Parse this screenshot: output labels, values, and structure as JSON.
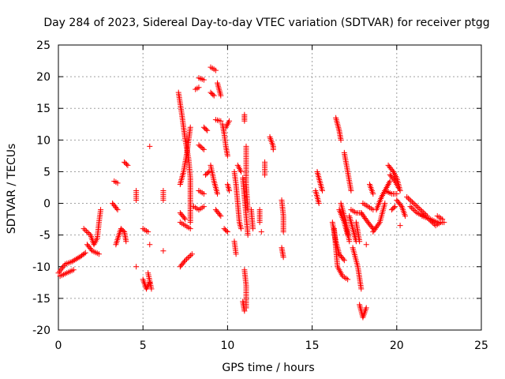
{
  "chart_data": {
    "type": "scatter",
    "title": "Day 284 of 2023, Sidereal Day-to-day VTEC variation (SDTVAR) for receiver ptgg",
    "xlabel": "GPS time / hours",
    "ylabel": "SDTVAR / TECUs",
    "xlim": [
      0,
      25
    ],
    "ylim": [
      -20,
      25
    ],
    "xticks": [
      0,
      5,
      10,
      15,
      20,
      25
    ],
    "yticks": [
      -20,
      -15,
      -10,
      -5,
      0,
      5,
      10,
      15,
      20,
      25
    ],
    "grid": true,
    "marker": "+",
    "color": "#ff0000",
    "tracks": [
      {
        "points": [
          [
            0,
            -11
          ],
          [
            0.4,
            -9.6
          ],
          [
            0.8,
            -9.2
          ],
          [
            1.3,
            -8.4
          ],
          [
            1.6,
            -7.8
          ]
        ]
      },
      {
        "points": [
          [
            0.1,
            -11.5
          ],
          [
            0.5,
            -11
          ],
          [
            0.9,
            -10.5
          ]
        ]
      },
      {
        "points": [
          [
            1.5,
            -4
          ],
          [
            1.9,
            -5
          ],
          [
            2.1,
            -6.5
          ],
          [
            2.3,
            -5.5
          ],
          [
            2.4,
            -3
          ],
          [
            2.5,
            -1
          ]
        ]
      },
      {
        "points": [
          [
            1.7,
            -6.5
          ],
          [
            2.0,
            -7.5
          ],
          [
            2.4,
            -8
          ]
        ]
      },
      {
        "points": [
          [
            3.3,
            3.5
          ],
          [
            3.5,
            3.2
          ]
        ]
      },
      {
        "points": [
          [
            3.2,
            0
          ],
          [
            3.5,
            -1
          ]
        ]
      },
      {
        "points": [
          [
            3.4,
            -6.5
          ],
          [
            3.7,
            -4
          ],
          [
            3.9,
            -4.5
          ],
          [
            4.0,
            -6
          ]
        ]
      },
      {
        "points": [
          [
            3.9,
            6.5
          ],
          [
            4.1,
            6
          ]
        ]
      },
      {
        "points": [
          [
            4.6,
            2
          ],
          [
            4.6,
            0.5
          ]
        ]
      },
      {
        "points": [
          [
            4.6,
            -10
          ]
        ]
      },
      {
        "points": [
          [
            5.0,
            -4
          ],
          [
            5.3,
            -4.5
          ]
        ]
      },
      {
        "points": [
          [
            5.0,
            -12
          ],
          [
            5.2,
            -13.5
          ],
          [
            5.4,
            -12.5
          ]
        ]
      },
      {
        "points": [
          [
            5.3,
            -11
          ],
          [
            5.5,
            -13.5
          ]
        ]
      },
      {
        "points": [
          [
            5.4,
            -6.5
          ]
        ]
      },
      {
        "points": [
          [
            5.4,
            9
          ]
        ]
      },
      {
        "points": [
          [
            6.2,
            2
          ],
          [
            6.2,
            0.5
          ]
        ]
      },
      {
        "points": [
          [
            6.2,
            -7.5
          ]
        ]
      },
      {
        "points": [
          [
            7.2,
            -10
          ],
          [
            7.5,
            -9
          ],
          [
            7.9,
            -8
          ]
        ]
      },
      {
        "points": [
          [
            7.1,
            17.5
          ],
          [
            7.3,
            14
          ],
          [
            7.5,
            10
          ],
          [
            7.7,
            7
          ],
          [
            7.8,
            4
          ],
          [
            7.8,
            -3
          ]
        ]
      },
      {
        "points": [
          [
            7.2,
            -3
          ],
          [
            7.5,
            -3.5
          ],
          [
            7.8,
            -4
          ]
        ]
      },
      {
        "points": [
          [
            7.2,
            -1.5
          ],
          [
            7.5,
            -2.5
          ]
        ]
      },
      {
        "points": [
          [
            7.2,
            3
          ],
          [
            7.4,
            5
          ],
          [
            7.6,
            8
          ],
          [
            7.8,
            12
          ]
        ]
      },
      {
        "points": [
          [
            8.1,
            18
          ],
          [
            8.3,
            18.3
          ]
        ]
      },
      {
        "points": [
          [
            8.3,
            19.8
          ],
          [
            8.6,
            19.5
          ]
        ]
      },
      {
        "points": [
          [
            8.6,
            12
          ],
          [
            8.8,
            11.5
          ]
        ]
      },
      {
        "points": [
          [
            8.3,
            9.2
          ],
          [
            8.6,
            8.5
          ]
        ]
      },
      {
        "points": [
          [
            8.3,
            2
          ],
          [
            8.6,
            1.5
          ]
        ]
      },
      {
        "points": [
          [
            8.3,
            -1
          ],
          [
            8.6,
            -0.5
          ]
        ]
      },
      {
        "points": [
          [
            8.7,
            4.5
          ],
          [
            8.9,
            5
          ]
        ]
      },
      {
        "points": [
          [
            8.0,
            -0.5
          ],
          [
            8.3,
            -1
          ]
        ]
      },
      {
        "points": [
          [
            9.0,
            21.5
          ],
          [
            9.3,
            21
          ]
        ]
      },
      {
        "points": [
          [
            9.0,
            17.5
          ],
          [
            9.2,
            17
          ]
        ]
      },
      {
        "points": [
          [
            9.0,
            6
          ],
          [
            9.2,
            3.5
          ],
          [
            9.4,
            1.5
          ]
        ]
      },
      {
        "points": [
          [
            9.4,
            19
          ],
          [
            9.6,
            17
          ]
        ]
      },
      {
        "points": [
          [
            9.3,
            13.2
          ],
          [
            9.6,
            13
          ]
        ]
      },
      {
        "points": [
          [
            9.7,
            12.5
          ],
          [
            9.8,
            11
          ],
          [
            9.9,
            9
          ],
          [
            10.0,
            7.5
          ]
        ]
      },
      {
        "points": [
          [
            9.9,
            12
          ],
          [
            10.1,
            13
          ]
        ]
      },
      {
        "points": [
          [
            9.3,
            -1
          ],
          [
            9.6,
            -2
          ]
        ]
      },
      {
        "points": [
          [
            9.8,
            -4
          ],
          [
            10.0,
            -4.5
          ]
        ]
      },
      {
        "points": [
          [
            10.0,
            3
          ],
          [
            10.1,
            2
          ]
        ]
      },
      {
        "points": [
          [
            10.4,
            5
          ],
          [
            10.5,
            3
          ],
          [
            10.6,
            0
          ],
          [
            10.7,
            -3
          ],
          [
            10.8,
            -4
          ]
        ]
      },
      {
        "points": [
          [
            10.4,
            -6
          ],
          [
            10.5,
            -8
          ]
        ]
      },
      {
        "points": [
          [
            10.6,
            6
          ],
          [
            10.8,
            5
          ]
        ]
      },
      {
        "points": [
          [
            10.9,
            4
          ],
          [
            11.0,
            1
          ],
          [
            11.1,
            -2
          ],
          [
            11.2,
            -5
          ]
        ]
      },
      {
        "points": [
          [
            11.1,
            9
          ],
          [
            11.1,
            3
          ],
          [
            11.2,
            -1
          ]
        ]
      },
      {
        "points": [
          [
            11.0,
            -10.5
          ],
          [
            11.1,
            -13
          ],
          [
            11.1,
            -16.5
          ]
        ]
      },
      {
        "points": [
          [
            10.9,
            -15.5
          ],
          [
            11.0,
            -17
          ]
        ]
      },
      {
        "points": [
          [
            11.0,
            14
          ],
          [
            11.0,
            13
          ]
        ]
      },
      {
        "points": [
          [
            11.4,
            -1
          ],
          [
            11.5,
            -4
          ]
        ]
      },
      {
        "points": [
          [
            11.9,
            -1
          ],
          [
            11.9,
            -3
          ]
        ]
      },
      {
        "points": [
          [
            12.2,
            6.5
          ],
          [
            12.2,
            4.5
          ]
        ]
      },
      {
        "points": [
          [
            12.0,
            -4.5
          ]
        ]
      },
      {
        "points": [
          [
            12.5,
            10.5
          ],
          [
            12.7,
            9
          ],
          [
            12.7,
            8.5
          ]
        ]
      },
      {
        "points": [
          [
            13.2,
            0.5
          ],
          [
            13.3,
            -2
          ],
          [
            13.3,
            -4.5
          ]
        ]
      },
      {
        "points": [
          [
            13.2,
            -7
          ],
          [
            13.3,
            -8.5
          ]
        ]
      },
      {
        "points": [
          [
            15.3,
            5
          ],
          [
            15.5,
            3
          ],
          [
            15.6,
            2
          ]
        ]
      },
      {
        "points": [
          [
            15.2,
            2
          ],
          [
            15.4,
            0
          ]
        ]
      },
      {
        "points": [
          [
            16.4,
            13.5
          ],
          [
            16.6,
            11.5
          ],
          [
            16.7,
            10
          ]
        ]
      },
      {
        "points": [
          [
            16.2,
            -3
          ],
          [
            16.4,
            -6
          ],
          [
            16.6,
            -8
          ],
          [
            16.9,
            -9
          ]
        ]
      },
      {
        "points": [
          [
            16.3,
            -4
          ],
          [
            16.5,
            -10
          ],
          [
            16.8,
            -11.5
          ],
          [
            17.1,
            -12
          ]
        ]
      },
      {
        "points": [
          [
            16.6,
            -1
          ],
          [
            16.9,
            -3
          ],
          [
            17.1,
            -5
          ]
        ]
      },
      {
        "points": [
          [
            16.7,
            0
          ],
          [
            17.0,
            -3
          ],
          [
            17.2,
            -6
          ]
        ]
      },
      {
        "points": [
          [
            16.9,
            8
          ],
          [
            17.1,
            5
          ],
          [
            17.3,
            2
          ]
        ]
      },
      {
        "points": [
          [
            17.2,
            -2
          ],
          [
            17.4,
            -4
          ],
          [
            17.6,
            -6
          ]
        ]
      },
      {
        "points": [
          [
            17.4,
            -7
          ],
          [
            17.7,
            -10
          ],
          [
            17.9,
            -13.5
          ]
        ]
      },
      {
        "points": [
          [
            17.3,
            -1
          ],
          [
            17.6,
            -1.5
          ],
          [
            17.9,
            -1.5
          ]
        ]
      },
      {
        "points": [
          [
            17.6,
            -3
          ],
          [
            17.8,
            -6
          ]
        ]
      },
      {
        "points": [
          [
            17.8,
            -16
          ],
          [
            18.0,
            -18
          ],
          [
            18.2,
            -16.5
          ]
        ]
      },
      {
        "points": [
          [
            17.9,
            -1.5
          ],
          [
            18.3,
            -3
          ],
          [
            18.6,
            -4
          ]
        ]
      },
      {
        "points": [
          [
            18.0,
            0
          ],
          [
            18.3,
            -0.5
          ],
          [
            18.6,
            -1
          ]
        ]
      },
      {
        "points": [
          [
            18.2,
            -6.5
          ]
        ]
      },
      {
        "points": [
          [
            18.4,
            3
          ],
          [
            18.6,
            1.5
          ]
        ]
      },
      {
        "points": [
          [
            18.6,
            -4.5
          ],
          [
            19.0,
            -3
          ],
          [
            19.3,
            0
          ]
        ]
      },
      {
        "points": [
          [
            18.8,
            -1
          ],
          [
            19.1,
            1
          ],
          [
            19.4,
            2.5
          ],
          [
            19.6,
            3.5
          ]
        ]
      },
      {
        "points": [
          [
            19.3,
            2
          ],
          [
            19.7,
            1.5
          ],
          [
            20.0,
            1.5
          ]
        ]
      },
      {
        "points": [
          [
            19.5,
            6
          ],
          [
            19.8,
            5
          ],
          [
            20.0,
            4
          ],
          [
            20.2,
            2
          ]
        ]
      },
      {
        "points": [
          [
            19.6,
            4.5
          ],
          [
            19.9,
            3.5
          ],
          [
            20.1,
            2.5
          ]
        ]
      },
      {
        "points": [
          [
            19.7,
            -1
          ],
          [
            19.9,
            -0.5
          ]
        ]
      },
      {
        "points": [
          [
            20.0,
            0.5
          ],
          [
            20.3,
            -0.5
          ],
          [
            20.5,
            -2
          ]
        ]
      },
      {
        "points": [
          [
            20.2,
            -3.5
          ]
        ]
      },
      {
        "points": [
          [
            20.6,
            1
          ],
          [
            21.0,
            0
          ],
          [
            21.4,
            -1
          ],
          [
            21.8,
            -2
          ]
        ]
      },
      {
        "points": [
          [
            20.8,
            -0.5
          ],
          [
            21.2,
            -1.5
          ],
          [
            21.6,
            -2
          ]
        ]
      },
      {
        "points": [
          [
            21.5,
            -2
          ],
          [
            22.0,
            -2.5
          ],
          [
            22.4,
            -3
          ],
          [
            22.8,
            -3
          ]
        ]
      },
      {
        "points": [
          [
            21.9,
            -2.5
          ],
          [
            22.3,
            -3.5
          ],
          [
            22.6,
            -3
          ]
        ]
      },
      {
        "points": [
          [
            22.4,
            -2
          ],
          [
            22.7,
            -2.5
          ]
        ]
      }
    ]
  }
}
